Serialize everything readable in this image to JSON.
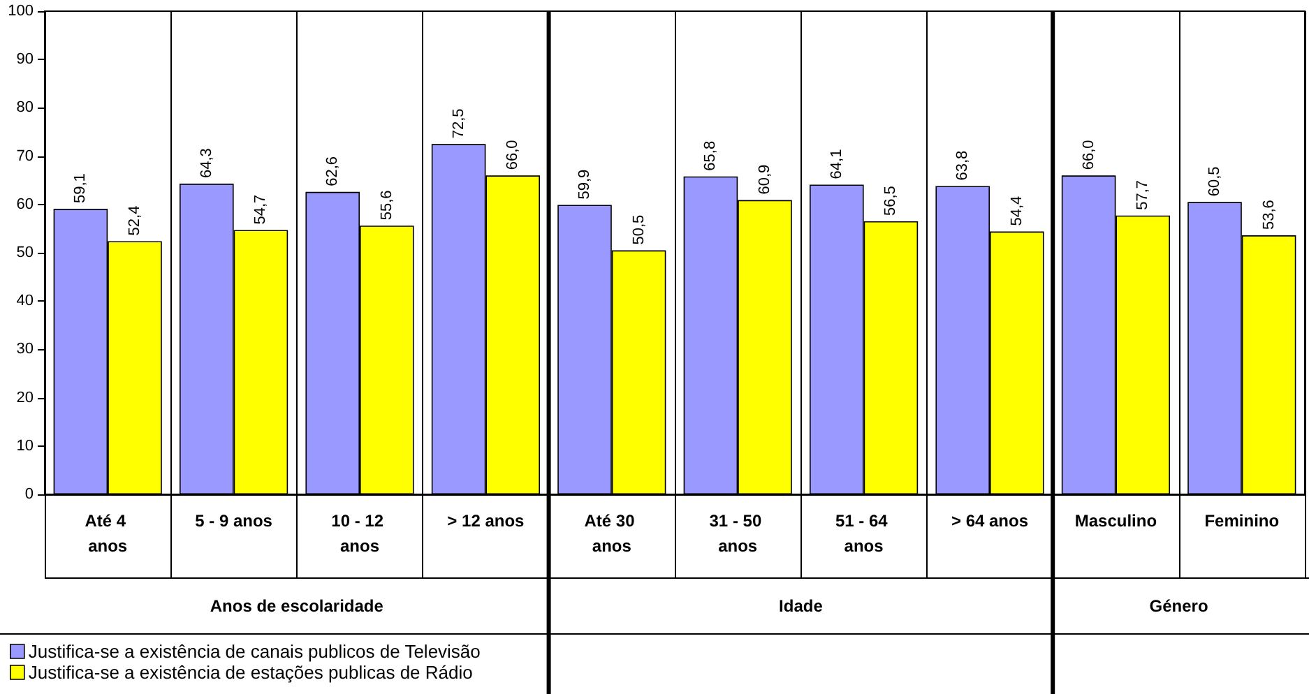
{
  "chart_data": {
    "type": "bar",
    "categories": [
      "Até 4 anos",
      "5 - 9 anos",
      "10 - 12 anos",
      "> 12 anos",
      "Até 30 anos",
      "31 - 50 anos",
      "51 - 64 anos",
      "> 64 anos",
      "Masculino",
      "Feminino"
    ],
    "series": [
      {
        "name": "Justifica-se a existência de canais publicos de Televisão",
        "color": "#9999ff",
        "values": [
          59.1,
          64.3,
          62.6,
          72.5,
          59.9,
          65.8,
          64.1,
          63.8,
          66.0,
          60.5
        ],
        "value_labels": [
          "59,1",
          "64,3",
          "62,6",
          "72,5",
          "59,9",
          "65,8",
          "64,1",
          "63,8",
          "66,0",
          "60,5"
        ]
      },
      {
        "name": "Justifica-se a existência de estações publicas de Rádio",
        "color": "#ffff00",
        "values": [
          52.4,
          54.7,
          55.6,
          66.0,
          50.5,
          60.9,
          56.5,
          54.4,
          57.7,
          53.6
        ],
        "value_labels": [
          "52,4",
          "54,7",
          "55,6",
          "66,0",
          "50,5",
          "60,9",
          "56,5",
          "54,4",
          "57,7",
          "53,6"
        ]
      }
    ],
    "annotations": [
      "Anos de escolaridade",
      "Idade",
      "Género"
    ],
    "ylim": [
      0,
      100
    ],
    "yticks": [
      0,
      10,
      20,
      30,
      40,
      50,
      60,
      70,
      80,
      90,
      100
    ],
    "grid": "x",
    "legend": "bottom left"
  }
}
